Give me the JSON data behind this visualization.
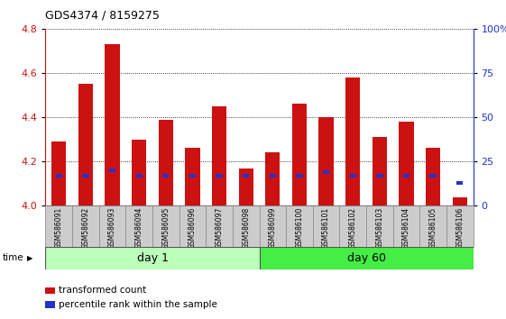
{
  "title": "GDS4374 / 8159275",
  "samples": [
    "GSM586091",
    "GSM586092",
    "GSM586093",
    "GSM586094",
    "GSM586095",
    "GSM586096",
    "GSM586097",
    "GSM586098",
    "GSM586099",
    "GSM586100",
    "GSM586101",
    "GSM586102",
    "GSM586103",
    "GSM586104",
    "GSM586105",
    "GSM586106"
  ],
  "red_values": [
    4.29,
    4.55,
    4.73,
    4.3,
    4.39,
    4.26,
    4.45,
    4.17,
    4.24,
    4.46,
    4.4,
    4.58,
    4.31,
    4.38,
    4.26,
    4.04
  ],
  "blue_percentiles": [
    17,
    17,
    20,
    17,
    17,
    17,
    17,
    17,
    17,
    17,
    19,
    17,
    17,
    17,
    17,
    13
  ],
  "ylim_left": [
    4.0,
    4.8
  ],
  "ylim_right": [
    0,
    100
  ],
  "yticks_left": [
    4.0,
    4.2,
    4.4,
    4.6,
    4.8
  ],
  "yticks_right": [
    0,
    25,
    50,
    75,
    100
  ],
  "ytick_labels_right": [
    "0",
    "25",
    "50",
    "75",
    "100%"
  ],
  "base_value": 4.0,
  "bar_width": 0.55,
  "red_color": "#cc1111",
  "blue_color": "#2233cc",
  "grid_color": "#000000",
  "plot_bg_color": "#ffffff",
  "day1_color": "#bbffbb",
  "day60_color": "#44ee44",
  "day1_label": "day 1",
  "day60_label": "day 60",
  "day1_samples": 8,
  "day60_samples": 8,
  "time_label": "time",
  "legend_red": "transformed count",
  "legend_blue": "percentile rank within the sample",
  "ylabel_left_color": "#cc1111",
  "ylabel_right_color": "#2233cc",
  "sample_box_color": "#cccccc"
}
